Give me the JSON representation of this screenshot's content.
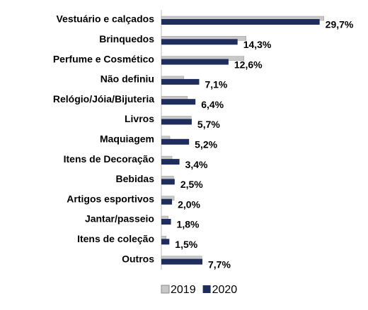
{
  "chart_data": {
    "type": "hbar",
    "categories": [
      "Vestuário e calçados",
      "Brinquedos",
      "Perfume e Cosmético",
      "Não definiu",
      "Relógio/Jóia/Bijuteria",
      "Livros",
      "Maquiagem",
      "Itens de Decoração",
      "Bebidas",
      "Artigos esportivos",
      "Jantar/passeio",
      "Itens de coleção",
      "Outros"
    ],
    "series": [
      {
        "name": "2019",
        "color": "#c8c8c8",
        "values": [
          30.5,
          15.9,
          15.5,
          4.2,
          4.9,
          5.6,
          1.6,
          2.0,
          2.3,
          2.4,
          1.3,
          0.9,
          7.6
        ]
      },
      {
        "name": "2020",
        "color": "#1f2d5c",
        "values": [
          29.7,
          14.3,
          12.6,
          7.1,
          6.4,
          5.7,
          5.2,
          3.4,
          2.5,
          2.0,
          1.8,
          1.5,
          7.7
        ],
        "value_labels": [
          "29,7%",
          "14,3%",
          "12,6%",
          "7,1%",
          "6,4%",
          "5,7%",
          "5,2%",
          "3,4%",
          "2,5%",
          "2,0%",
          "1,8%",
          "1,5%",
          "7,7%"
        ]
      }
    ],
    "xlim": [
      0,
      32
    ],
    "legend": "bottom"
  }
}
